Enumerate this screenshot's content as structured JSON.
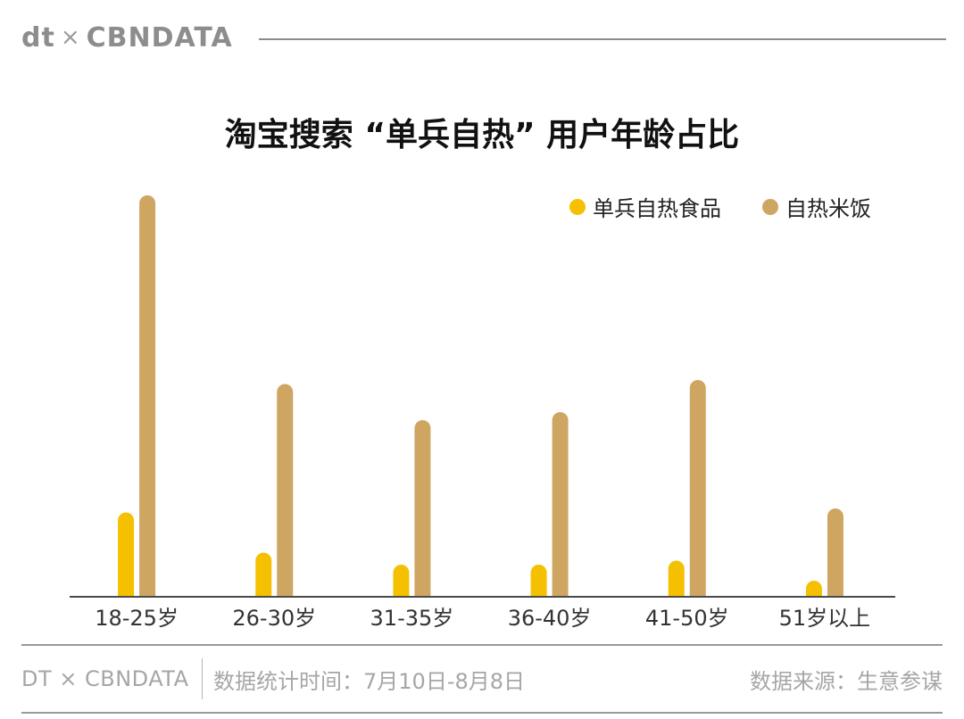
{
  "header": {
    "logo_left": "dt",
    "logo_x": "×",
    "logo_right": "CBNDATA"
  },
  "colors": {
    "series1": "#F5C000",
    "series2": "#CFA562",
    "axis": "#4a4a4a"
  },
  "chart_data": {
    "type": "bar",
    "title": "淘宝搜索 “单兵自热” 用户年龄占比",
    "categories": [
      "18-25岁",
      "26-30岁",
      "31-35岁",
      "36-40岁",
      "41-50岁",
      "51岁以上"
    ],
    "series": [
      {
        "name": "单兵自热食品",
        "values": [
          21,
          11,
          8,
          8,
          9,
          2
        ]
      },
      {
        "name": "自热米饭",
        "values": [
          100,
          53,
          44,
          46,
          54,
          22
        ]
      }
    ],
    "ylim": [
      0,
      100
    ],
    "grid": false,
    "legend_position": "top-right"
  },
  "footer": {
    "brand": "DT × CBNDATA",
    "period": "数据统计时间：7月10日-8月8日",
    "source": "数据来源：生意参谋"
  }
}
